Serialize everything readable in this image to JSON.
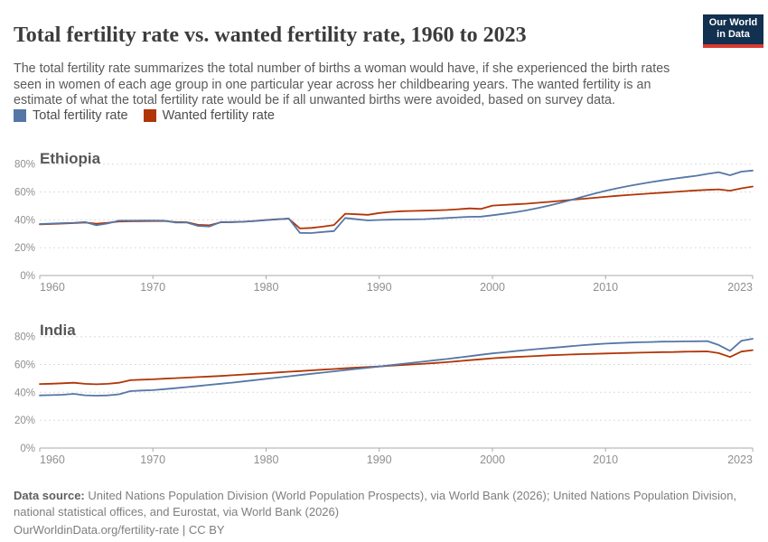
{
  "header": {
    "title": "Total fertility rate vs. wanted fertility rate, 1960 to 2023",
    "logo": {
      "line1": "Our World",
      "line2": "in Data",
      "bg_color": "#12304f",
      "bar_color": "#d93a32"
    }
  },
  "subtitle": "The total fertility rate summarizes the total number of births a woman would have, if she experienced the birth rates seen in women of each age group in one particular year across her childbearing years. The wanted fertility is an estimate of what the total fertility rate would be if all unwanted births were avoided, based on survey data.",
  "legend": [
    {
      "label": "Total fertility rate",
      "color": "#5577a6"
    },
    {
      "label": "Wanted fertility rate",
      "color": "#b13507"
    }
  ],
  "footer": {
    "source_label": "Data source:",
    "source_text": " United Nations Population Division (World Population Prospects), via World Bank (2026); United Nations Population Division, national statistical offices, and Eurostat, via World Bank (2026)",
    "citation": "OurWorldinData.org/fertility-rate | CC BY"
  },
  "chart_data": [
    {
      "type": "line",
      "title": "Ethiopia",
      "x_from": 1960,
      "x_to": 2023,
      "x_interval": "yearly",
      "xticks": [
        1960,
        1970,
        1980,
        1990,
        2000,
        2010,
        2023
      ],
      "yticks": [
        0,
        20,
        40,
        60,
        80
      ],
      "ytick_labels": [
        "0%",
        "20%",
        "40%",
        "60%",
        "80%"
      ],
      "ylim": [
        0,
        85
      ],
      "grid": true,
      "legend_position": "top",
      "series": [
        {
          "name": "Total fertility rate",
          "color": "#5577a6",
          "values": [
            37.0,
            37.3,
            37.6,
            37.9,
            38.4,
            36.1,
            37.4,
            39.4,
            39.4,
            39.5,
            39.5,
            39.4,
            38.1,
            38.0,
            35.6,
            35.2,
            38.4,
            38.5,
            38.7,
            39.1,
            39.8,
            40.3,
            41.0,
            30.6,
            30.5,
            31.3,
            31.9,
            41.3,
            40.4,
            39.6,
            39.9,
            40.1,
            40.2,
            40.3,
            40.5,
            40.9,
            41.3,
            41.8,
            42.2,
            42.3,
            43.3,
            44.3,
            45.4,
            46.8,
            48.4,
            50.2,
            52.2,
            54.4,
            56.6,
            58.8,
            60.8,
            62.6,
            64.2,
            65.7,
            67.1,
            68.3,
            69.5,
            70.6,
            71.6,
            73.0,
            74.2,
            72.0,
            74.6,
            75.4
          ]
        },
        {
          "name": "Wanted fertility rate",
          "color": "#b13507",
          "values": [
            36.7,
            37.0,
            37.3,
            37.6,
            38.1,
            37.2,
            37.8,
            38.8,
            38.9,
            39.0,
            39.1,
            39.2,
            38.4,
            38.3,
            36.4,
            36.1,
            38.2,
            38.3,
            38.6,
            39.2,
            39.9,
            40.4,
            40.8,
            33.8,
            34.2,
            35.1,
            36.3,
            44.4,
            44.0,
            43.6,
            44.9,
            45.7,
            46.2,
            46.4,
            46.6,
            46.8,
            47.1,
            47.6,
            48.2,
            47.8,
            50.2,
            50.7,
            51.1,
            51.6,
            52.2,
            52.9,
            53.6,
            54.4,
            55.1,
            55.8,
            56.5,
            57.2,
            57.8,
            58.4,
            59.0,
            59.5,
            60.0,
            60.6,
            61.1,
            61.5,
            61.9,
            60.9,
            62.6,
            63.9
          ]
        }
      ]
    },
    {
      "type": "line",
      "title": "India",
      "x_from": 1960,
      "x_to": 2023,
      "x_interval": "yearly",
      "xticks": [
        1960,
        1970,
        1980,
        1990,
        2000,
        2010,
        2023
      ],
      "yticks": [
        0,
        20,
        40,
        60,
        80
      ],
      "ytick_labels": [
        "0%",
        "20%",
        "40%",
        "60%",
        "80%"
      ],
      "ylim": [
        0,
        85
      ],
      "grid": true,
      "legend_position": "top",
      "series": [
        {
          "name": "Total fertility rate",
          "color": "#5577a6",
          "values": [
            37.8,
            38.0,
            38.3,
            38.9,
            37.9,
            37.6,
            37.8,
            38.6,
            40.9,
            41.3,
            41.6,
            42.3,
            43.0,
            43.8,
            44.6,
            45.4,
            46.2,
            47.0,
            47.9,
            48.8,
            49.7,
            50.6,
            51.5,
            52.4,
            53.3,
            54.2,
            55.1,
            56.0,
            56.9,
            57.7,
            58.6,
            59.5,
            60.4,
            61.3,
            62.2,
            63.1,
            64.0,
            65.0,
            66.0,
            67.0,
            68.0,
            68.8,
            69.6,
            70.4,
            71.1,
            71.8,
            72.5,
            73.2,
            73.9,
            74.5,
            75.0,
            75.4,
            75.7,
            76.0,
            76.2,
            76.4,
            76.5,
            76.6,
            76.7,
            76.8,
            74.0,
            69.8,
            77.0,
            78.5
          ]
        },
        {
          "name": "Wanted fertility rate",
          "color": "#b13507",
          "values": [
            46.0,
            46.2,
            46.5,
            46.9,
            46.1,
            45.8,
            46.1,
            46.9,
            48.7,
            49.1,
            49.4,
            49.8,
            50.2,
            50.6,
            51.0,
            51.4,
            51.8,
            52.3,
            52.8,
            53.3,
            53.8,
            54.3,
            54.8,
            55.3,
            55.8,
            56.3,
            56.8,
            57.3,
            57.8,
            58.2,
            58.6,
            59.1,
            59.6,
            60.1,
            60.6,
            61.1,
            61.7,
            62.4,
            63.1,
            63.8,
            64.5,
            65.0,
            65.4,
            65.8,
            66.2,
            66.6,
            66.9,
            67.2,
            67.5,
            67.7,
            67.9,
            68.1,
            68.3,
            68.5,
            68.7,
            68.9,
            69.0,
            69.2,
            69.3,
            69.4,
            68.2,
            65.4,
            69.3,
            70.3
          ]
        }
      ]
    }
  ]
}
